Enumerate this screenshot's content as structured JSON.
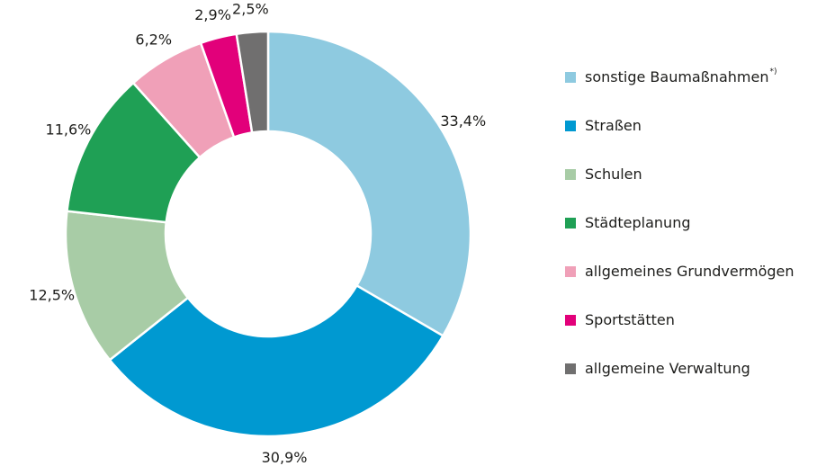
{
  "chart_data": {
    "type": "pie",
    "categories": [
      "sonstige Baumaßnahmen",
      "Straßen",
      "Schulen",
      "Städteplanung",
      "allgemeines Grundvermögen",
      "Sportstätten",
      "allgemeine Verwaltung"
    ],
    "footnote_mark": "*)",
    "values": [
      33.4,
      30.9,
      12.5,
      11.6,
      6.2,
      2.9,
      2.5
    ],
    "value_labels": [
      "33,4%",
      "30,9%",
      "12,5%",
      "11,6%",
      "6,2%",
      "2,9%",
      "2,5%"
    ],
    "colors": [
      "#8ecae0",
      "#0099d1",
      "#a8cca6",
      "#1fa055",
      "#f0a0b8",
      "#e2007a",
      "#706f6f"
    ],
    "donut": true,
    "legend": "right"
  }
}
